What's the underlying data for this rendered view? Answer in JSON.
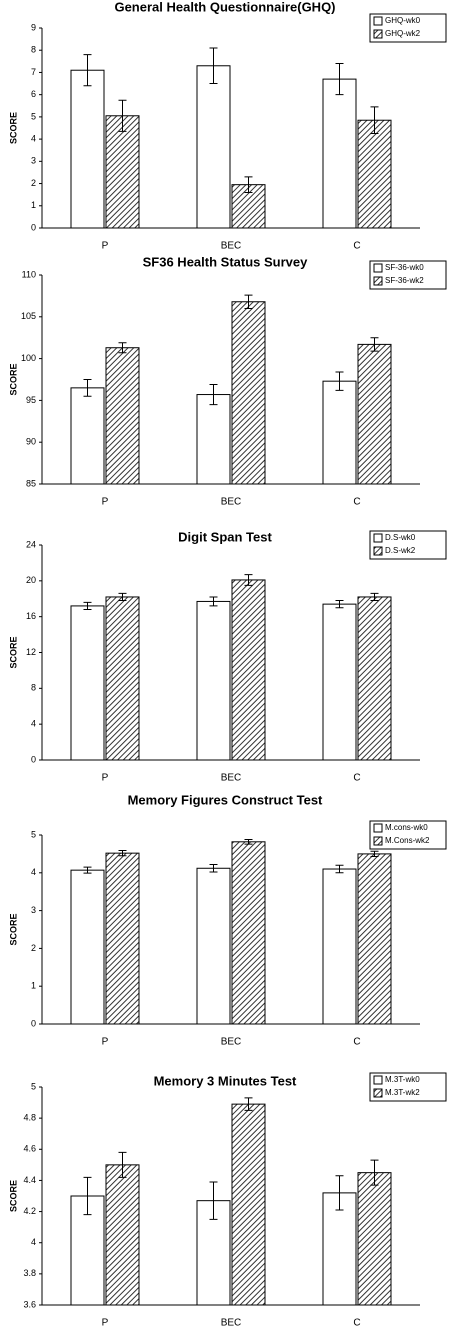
{
  "chart_data": [
    {
      "type": "bar",
      "title": "General Health Questionnaire(GHQ)",
      "y_label": "SCORE",
      "categories": [
        "P",
        "BEC",
        "C"
      ],
      "ylim": [
        0,
        9
      ],
      "yticks": [
        0,
        1,
        2,
        3,
        4,
        5,
        6,
        7,
        8,
        9
      ],
      "grid": false,
      "series": [
        {
          "name": "GHQ-wk0",
          "color": "#ffffff",
          "pattern": "solid",
          "values": [
            7.1,
            7.3,
            6.7
          ],
          "errors": [
            0.7,
            0.8,
            0.7
          ]
        },
        {
          "name": "GHQ-wk2",
          "color": "#333333",
          "pattern": "hatch",
          "values": [
            5.05,
            1.95,
            4.85
          ],
          "errors": [
            0.7,
            0.35,
            0.6
          ]
        }
      ]
    },
    {
      "type": "bar",
      "title": "SF36 Health Status Survey",
      "y_label": "SCORE",
      "categories": [
        "P",
        "BEC",
        "C"
      ],
      "ylim": [
        85,
        110
      ],
      "yticks": [
        85,
        90,
        95,
        100,
        105,
        110
      ],
      "grid": false,
      "series": [
        {
          "name": "SF-36-wk0",
          "color": "#ffffff",
          "pattern": "solid",
          "values": [
            96.5,
            95.7,
            97.3
          ],
          "errors": [
            1.0,
            1.2,
            1.1
          ]
        },
        {
          "name": "SF-36-wk2",
          "color": "#333333",
          "pattern": "hatch",
          "values": [
            101.3,
            106.8,
            101.7
          ],
          "errors": [
            0.6,
            0.8,
            0.8
          ]
        }
      ]
    },
    {
      "type": "bar",
      "title": "Digit Span Test",
      "y_label": "SCORE",
      "categories": [
        "P",
        "BEC",
        "C"
      ],
      "ylim": [
        0,
        24
      ],
      "yticks": [
        0,
        4,
        8,
        12,
        16,
        20,
        24
      ],
      "grid": false,
      "series": [
        {
          "name": "D.S-wk0",
          "color": "#ffffff",
          "pattern": "solid",
          "values": [
            17.2,
            17.7,
            17.4
          ],
          "errors": [
            0.4,
            0.5,
            0.4
          ]
        },
        {
          "name": "D.S-wk2",
          "color": "#333333",
          "pattern": "hatch",
          "values": [
            18.2,
            20.1,
            18.2
          ],
          "errors": [
            0.4,
            0.6,
            0.4
          ]
        }
      ]
    },
    {
      "type": "bar",
      "title": "Memory Figures Construct Test",
      "y_label": "SCORE",
      "categories": [
        "P",
        "BEC",
        "C"
      ],
      "ylim": [
        0,
        5
      ],
      "yticks": [
        0,
        1,
        2,
        3,
        4,
        5
      ],
      "grid": false,
      "series": [
        {
          "name": "M.cons-wk0",
          "color": "#ffffff",
          "pattern": "solid",
          "values": [
            4.07,
            4.12,
            4.1
          ],
          "errors": [
            0.08,
            0.1,
            0.1
          ]
        },
        {
          "name": "M.Cons-wk2",
          "color": "#333333",
          "pattern": "hatch",
          "values": [
            4.52,
            4.82,
            4.5
          ],
          "errors": [
            0.07,
            0.06,
            0.07
          ]
        }
      ]
    },
    {
      "type": "bar",
      "title": "Memory 3 Minutes Test",
      "y_label": "SCORE",
      "categories": [
        "P",
        "BEC",
        "C"
      ],
      "ylim": [
        3.6,
        5
      ],
      "yticks": [
        3.6,
        3.8,
        4,
        4.2,
        4.4,
        4.6,
        4.8,
        5
      ],
      "grid": false,
      "series": [
        {
          "name": "M.3T-wk0",
          "color": "#ffffff",
          "pattern": "solid",
          "values": [
            4.3,
            4.27,
            4.32
          ],
          "errors": [
            0.12,
            0.12,
            0.11
          ]
        },
        {
          "name": "M.3T-wk2",
          "color": "#333333",
          "pattern": "hatch",
          "values": [
            4.5,
            4.89,
            4.45
          ],
          "errors": [
            0.08,
            0.04,
            0.08
          ]
        }
      ]
    }
  ]
}
